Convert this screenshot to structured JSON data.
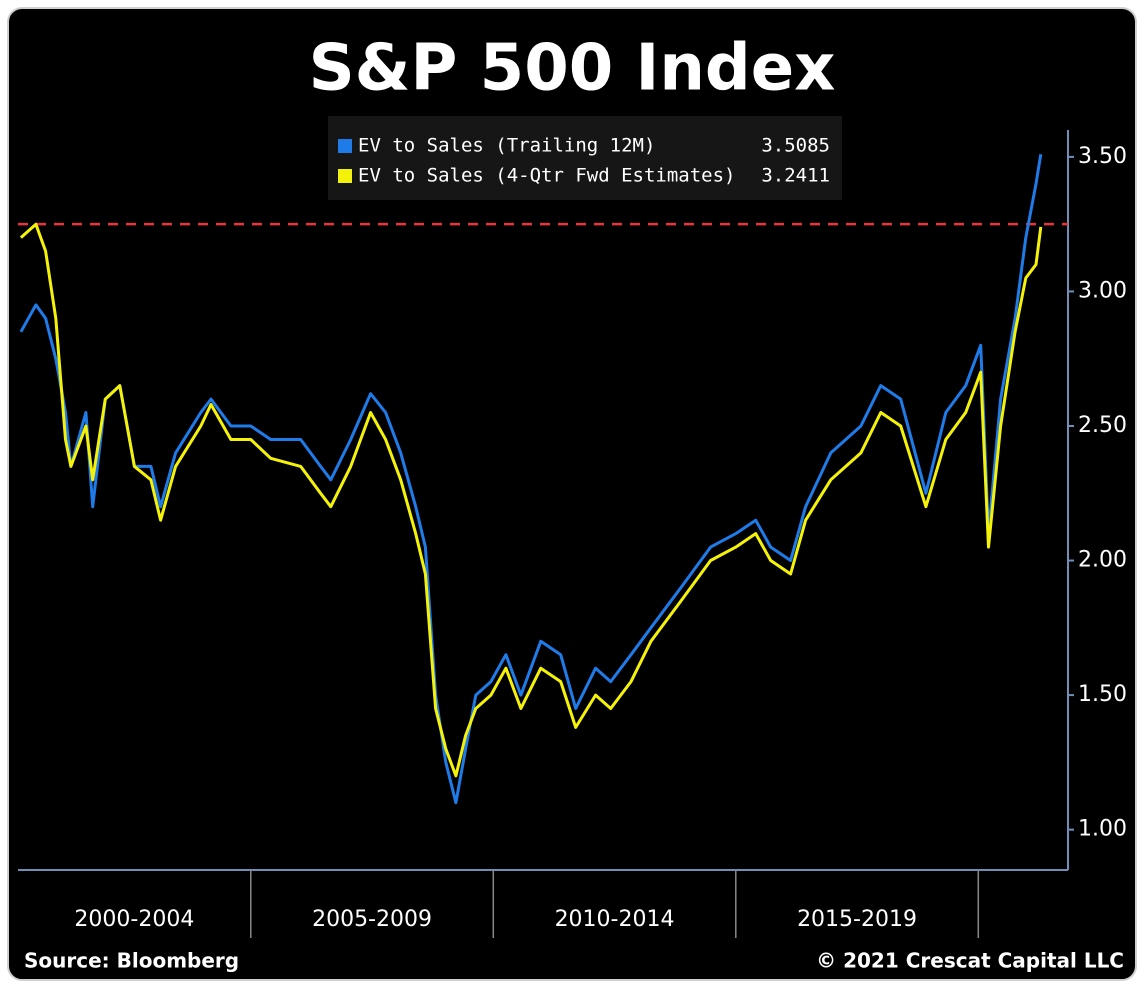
{
  "chart_data": {
    "type": "line",
    "title": "S&P 500 Index",
    "source": "Source: Bloomberg",
    "copyright": "© 2021 Crescat Capital LLC",
    "x": [
      2000.26,
      2000.57,
      2000.77,
      2000.98,
      2001.18,
      2001.29,
      2001.6,
      2001.74,
      2002.0,
      2002.3,
      2002.6,
      2002.94,
      2003.14,
      2003.45,
      2003.97,
      2004.18,
      2004.59,
      2005.0,
      2005.41,
      2006.03,
      2006.44,
      2006.65,
      2007.06,
      2007.47,
      2007.78,
      2008.09,
      2008.4,
      2008.6,
      2008.81,
      2009.02,
      2009.23,
      2009.43,
      2009.64,
      2009.95,
      2010.26,
      2010.57,
      2010.98,
      2011.39,
      2011.7,
      2012.11,
      2012.42,
      2012.84,
      2013.25,
      2013.87,
      2014.48,
      2015.0,
      2015.41,
      2015.72,
      2016.13,
      2016.44,
      2016.96,
      2017.58,
      2017.99,
      2018.4,
      2018.92,
      2019.33,
      2019.74,
      2020.05,
      2020.21,
      2020.46,
      2020.76,
      2020.98,
      2021.19,
      2021.29
    ],
    "series": [
      {
        "name": "EV to Sales (Trailing 12M)",
        "legend_value": 3.5085,
        "color": "#1e7be8",
        "values": [
          2.85,
          2.95,
          2.9,
          2.75,
          2.55,
          2.35,
          2.55,
          2.2,
          2.6,
          2.65,
          2.35,
          2.35,
          2.2,
          2.4,
          2.55,
          2.6,
          2.5,
          2.5,
          2.45,
          2.45,
          2.35,
          2.3,
          2.45,
          2.62,
          2.55,
          2.4,
          2.2,
          2.05,
          1.5,
          1.25,
          1.1,
          1.3,
          1.5,
          1.55,
          1.65,
          1.5,
          1.7,
          1.65,
          1.45,
          1.6,
          1.55,
          1.65,
          1.75,
          1.9,
          2.05,
          2.1,
          2.15,
          2.05,
          2.0,
          2.2,
          2.4,
          2.5,
          2.65,
          2.6,
          2.25,
          2.55,
          2.65,
          2.8,
          2.1,
          2.6,
          2.9,
          3.2,
          3.4,
          3.51
        ]
      },
      {
        "name": "EV to Sales (4-Qtr Fwd Estimates)",
        "legend_value": 3.2411,
        "color": "#f5f20a",
        "values": [
          3.2,
          3.25,
          3.15,
          2.9,
          2.45,
          2.35,
          2.5,
          2.3,
          2.6,
          2.65,
          2.35,
          2.3,
          2.15,
          2.35,
          2.5,
          2.58,
          2.45,
          2.45,
          2.38,
          2.35,
          2.25,
          2.2,
          2.35,
          2.55,
          2.45,
          2.3,
          2.1,
          1.95,
          1.45,
          1.3,
          1.2,
          1.35,
          1.45,
          1.5,
          1.6,
          1.45,
          1.6,
          1.55,
          1.38,
          1.5,
          1.45,
          1.55,
          1.7,
          1.85,
          2.0,
          2.05,
          2.1,
          2.0,
          1.95,
          2.15,
          2.3,
          2.4,
          2.55,
          2.5,
          2.2,
          2.45,
          2.55,
          2.7,
          2.05,
          2.5,
          2.85,
          3.05,
          3.1,
          3.24
        ]
      }
    ],
    "ref_line": {
      "value": 3.25,
      "color": "#e8343c"
    },
    "x_periods": [
      {
        "label": "2000-2004",
        "start": 2000,
        "end": 2005
      },
      {
        "label": "2005-2009",
        "start": 2005,
        "end": 2010
      },
      {
        "label": "2010-2014",
        "start": 2010,
        "end": 2015
      },
      {
        "label": "2015-2019",
        "start": 2015,
        "end": 2020
      }
    ],
    "xlim": [
      2000.2,
      2021.85
    ],
    "ylim": [
      0.85,
      3.6
    ],
    "yticks": [
      {
        "value": 1,
        "label": "1.00"
      },
      {
        "value": 1.5,
        "label": "1.50"
      },
      {
        "value": 2,
        "label": "2.00"
      },
      {
        "value": 2.5,
        "label": "2.50"
      },
      {
        "value": 3,
        "label": "3.00"
      },
      {
        "value": 3.5,
        "label": "3.50"
      }
    ],
    "axis_color": "#6f8fb8"
  }
}
